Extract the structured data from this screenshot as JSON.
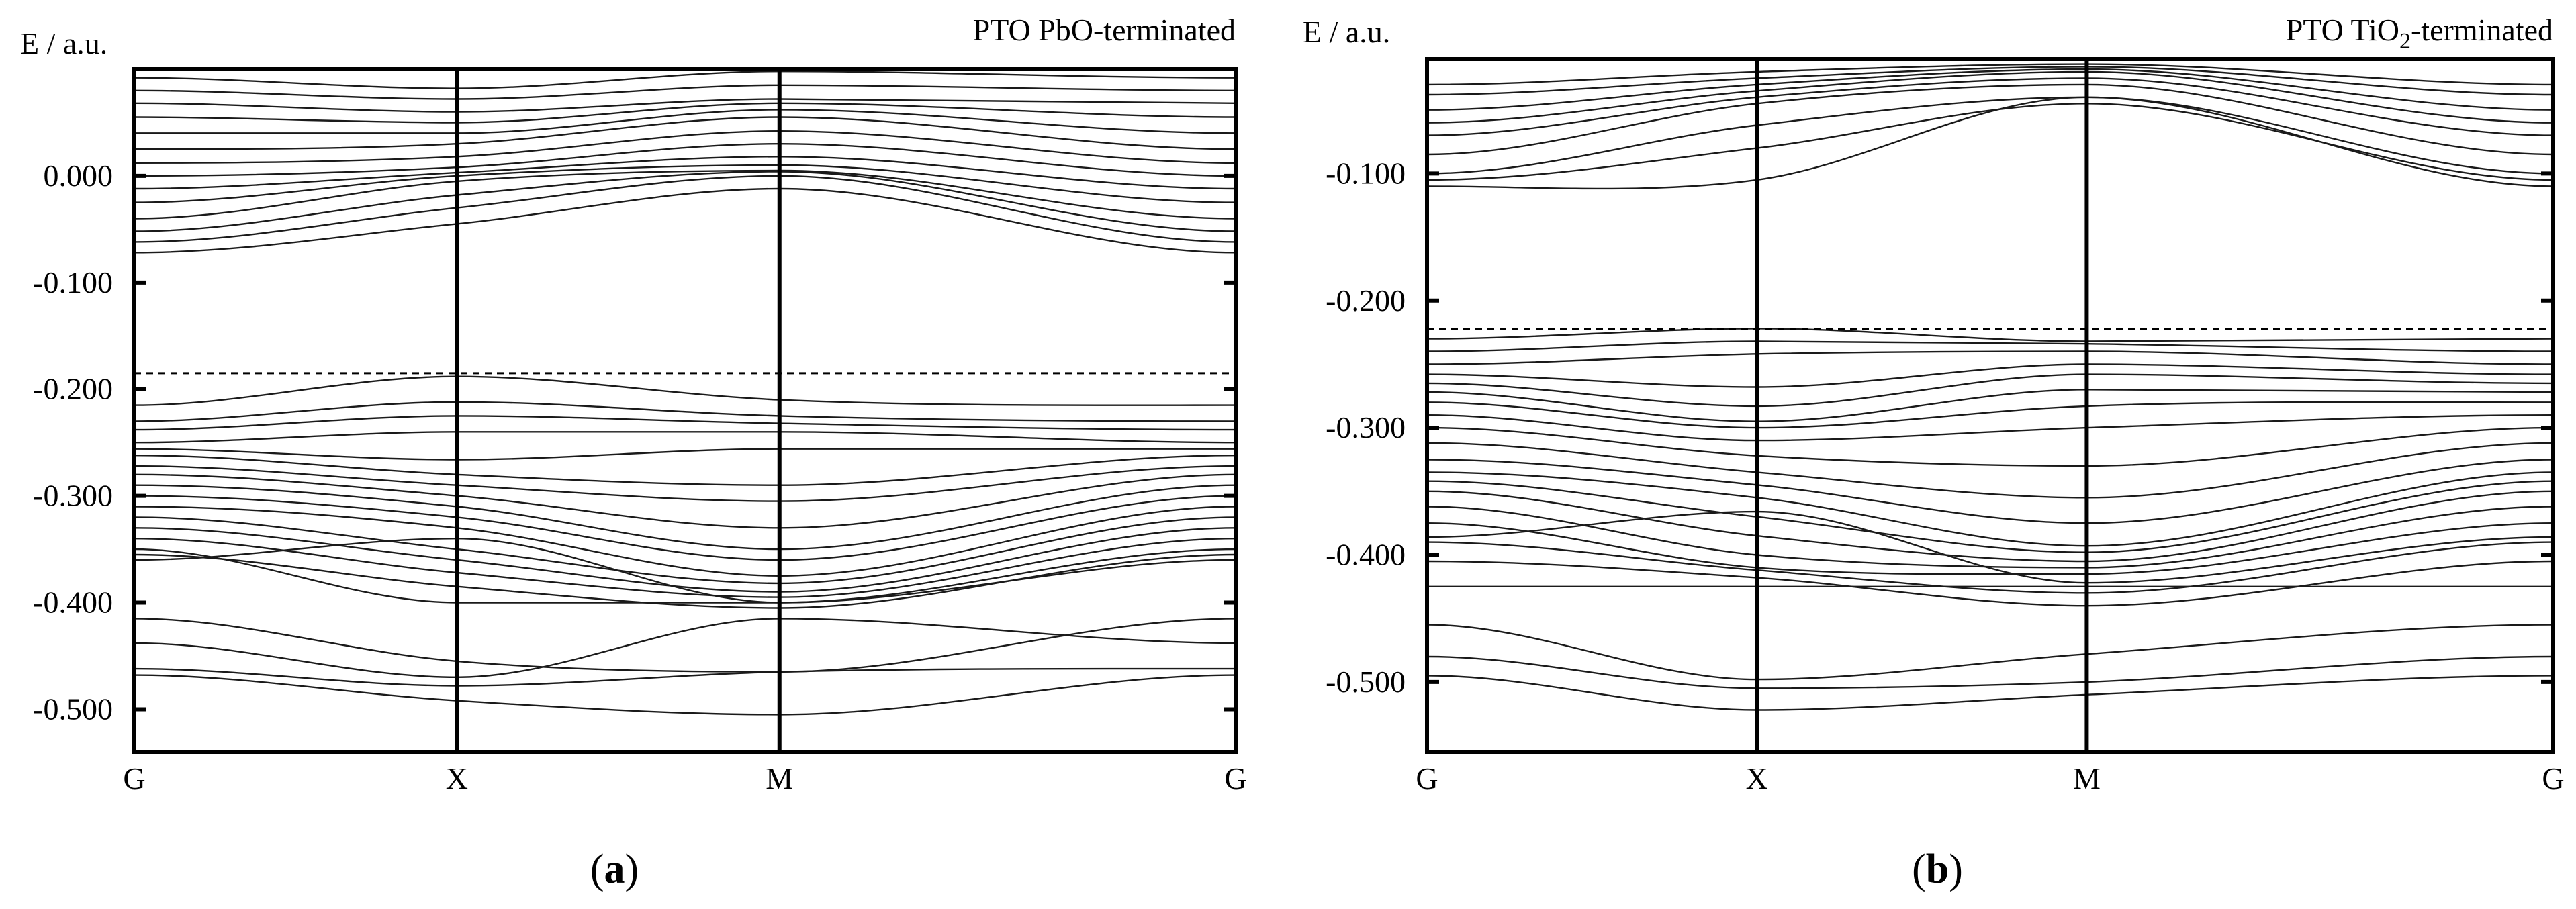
{
  "figure": {
    "caption_a_letter": "a",
    "caption_b_letter": "b",
    "ylabel": "E / a.u."
  },
  "colors": {
    "line": "#1a1a1a",
    "axis": "#000000",
    "background": "#ffffff"
  },
  "chart_data": [
    {
      "type": "line",
      "panel": "a",
      "title": "PTO PbO-terminated",
      "title_parts": [
        "PTO PbO-terminated"
      ],
      "xlabel": "",
      "ylabel": "E / a.u.",
      "x_ticks": [
        "G",
        "X",
        "M",
        "G"
      ],
      "k_positions": [
        0,
        1,
        2,
        3.414
      ],
      "y_ticks": [
        "0.000",
        "-0.100",
        "-0.200",
        "-0.300",
        "-0.400",
        "-0.500"
      ],
      "y_tick_values": [
        0.0,
        -0.1,
        -0.2,
        -0.3,
        -0.4,
        -0.5
      ],
      "ylim": [
        -0.54,
        0.1
      ],
      "fermi_level": -0.185,
      "series": [
        {
          "name": "band 1",
          "values": [
            -0.468,
            -0.492,
            -0.505,
            -0.468
          ]
        },
        {
          "name": "band 2",
          "values": [
            -0.462,
            -0.478,
            -0.465,
            -0.462
          ]
        },
        {
          "name": "band 3",
          "values": [
            -0.438,
            -0.47,
            -0.415,
            -0.438
          ]
        },
        {
          "name": "band 4",
          "values": [
            -0.415,
            -0.455,
            -0.465,
            -0.415
          ]
        },
        {
          "name": "band 5",
          "values": [
            -0.36,
            -0.34,
            -0.4,
            -0.36
          ]
        },
        {
          "name": "band 6",
          "values": [
            -0.355,
            -0.385,
            -0.405,
            -0.355
          ]
        },
        {
          "name": "band 7",
          "values": [
            -0.35,
            -0.4,
            -0.4,
            -0.35
          ]
        },
        {
          "name": "band 8",
          "values": [
            -0.34,
            -0.372,
            -0.395,
            -0.34
          ]
        },
        {
          "name": "band 9",
          "values": [
            -0.33,
            -0.36,
            -0.39,
            -0.33
          ]
        },
        {
          "name": "band 10",
          "values": [
            -0.32,
            -0.35,
            -0.382,
            -0.32
          ]
        },
        {
          "name": "band 11",
          "values": [
            -0.31,
            -0.33,
            -0.375,
            -0.31
          ]
        },
        {
          "name": "band 12",
          "values": [
            -0.3,
            -0.32,
            -0.36,
            -0.3
          ]
        },
        {
          "name": "band 13",
          "values": [
            -0.29,
            -0.31,
            -0.35,
            -0.29
          ]
        },
        {
          "name": "band 14",
          "values": [
            -0.28,
            -0.3,
            -0.33,
            -0.28
          ]
        },
        {
          "name": "band 15",
          "values": [
            -0.272,
            -0.29,
            -0.305,
            -0.272
          ]
        },
        {
          "name": "band 16",
          "values": [
            -0.262,
            -0.28,
            -0.29,
            -0.262
          ]
        },
        {
          "name": "band 17",
          "values": [
            -0.256,
            -0.266,
            -0.256,
            -0.256
          ]
        },
        {
          "name": "band 18",
          "values": [
            -0.25,
            -0.24,
            -0.24,
            -0.25
          ]
        },
        {
          "name": "band 19",
          "values": [
            -0.238,
            -0.225,
            -0.232,
            -0.238
          ]
        },
        {
          "name": "band 20",
          "values": [
            -0.23,
            -0.212,
            -0.225,
            -0.23
          ]
        },
        {
          "name": "band 21",
          "values": [
            -0.215,
            -0.188,
            -0.21,
            -0.215
          ]
        },
        {
          "name": "band 22",
          "values": [
            -0.072,
            -0.045,
            -0.012,
            -0.072
          ]
        },
        {
          "name": "band 23",
          "values": [
            -0.062,
            -0.03,
            0.0,
            -0.062
          ]
        },
        {
          "name": "band 24",
          "values": [
            -0.052,
            -0.018,
            0.004,
            -0.052
          ]
        },
        {
          "name": "band 25",
          "values": [
            -0.04,
            -0.005,
            0.005,
            -0.04
          ]
        },
        {
          "name": "band 26",
          "values": [
            -0.025,
            0.0,
            0.01,
            -0.025
          ]
        },
        {
          "name": "band 27",
          "values": [
            -0.012,
            0.003,
            0.018,
            -0.012
          ]
        },
        {
          "name": "band 28",
          "values": [
            0.0,
            0.008,
            0.03,
            0.0
          ]
        },
        {
          "name": "band 29",
          "values": [
            0.012,
            0.018,
            0.042,
            0.012
          ]
        },
        {
          "name": "band 30",
          "values": [
            0.025,
            0.03,
            0.055,
            0.025
          ]
        },
        {
          "name": "band 31",
          "values": [
            0.04,
            0.04,
            0.062,
            0.04
          ]
        },
        {
          "name": "band 32",
          "values": [
            0.055,
            0.05,
            0.068,
            0.055
          ]
        },
        {
          "name": "band 33",
          "values": [
            0.068,
            0.06,
            0.072,
            0.068
          ]
        },
        {
          "name": "band 34",
          "values": [
            0.08,
            0.072,
            0.085,
            0.08
          ]
        },
        {
          "name": "band 35",
          "values": [
            0.092,
            0.082,
            0.098,
            0.092
          ]
        }
      ]
    },
    {
      "type": "line",
      "panel": "b",
      "title": "PTO TiO2-terminated",
      "title_parts": [
        "PTO TiO",
        "2",
        "-terminated"
      ],
      "xlabel": "",
      "ylabel": "E / a.u.",
      "x_ticks": [
        "G",
        "X",
        "M",
        "G"
      ],
      "k_positions": [
        0,
        1,
        2,
        3.414
      ],
      "y_ticks": [
        "-0.100",
        "-0.200",
        "-0.300",
        "-0.400",
        "-0.500"
      ],
      "y_tick_values": [
        -0.1,
        -0.2,
        -0.3,
        -0.4,
        -0.5
      ],
      "ylim": [
        -0.555,
        -0.01
      ],
      "fermi_level": -0.222,
      "series": [
        {
          "name": "band 1",
          "values": [
            -0.495,
            -0.522,
            -0.51,
            -0.495
          ]
        },
        {
          "name": "band 2",
          "values": [
            -0.48,
            -0.505,
            -0.5,
            -0.48
          ]
        },
        {
          "name": "band 3",
          "values": [
            -0.455,
            -0.498,
            -0.478,
            -0.455
          ]
        },
        {
          "name": "band 4",
          "values": [
            -0.425,
            -0.425,
            -0.425,
            -0.425
          ]
        },
        {
          "name": "band 5",
          "values": [
            -0.405,
            -0.418,
            -0.44,
            -0.405
          ]
        },
        {
          "name": "band 6",
          "values": [
            -0.39,
            -0.412,
            -0.43,
            -0.39
          ]
        },
        {
          "name": "band 7",
          "values": [
            -0.386,
            -0.366,
            -0.422,
            -0.386
          ]
        },
        {
          "name": "band 8",
          "values": [
            -0.375,
            -0.41,
            -0.415,
            -0.375
          ]
        },
        {
          "name": "band 9",
          "values": [
            -0.362,
            -0.4,
            -0.41,
            -0.362
          ]
        },
        {
          "name": "band 10",
          "values": [
            -0.35,
            -0.385,
            -0.405,
            -0.35
          ]
        },
        {
          "name": "band 11",
          "values": [
            -0.342,
            -0.37,
            -0.398,
            -0.342
          ]
        },
        {
          "name": "band 12",
          "values": [
            -0.335,
            -0.355,
            -0.393,
            -0.335
          ]
        },
        {
          "name": "band 13",
          "values": [
            -0.325,
            -0.345,
            -0.375,
            -0.325
          ]
        },
        {
          "name": "band 14",
          "values": [
            -0.312,
            -0.335,
            -0.355,
            -0.312
          ]
        },
        {
          "name": "band 15",
          "values": [
            -0.3,
            -0.322,
            -0.33,
            -0.3
          ]
        },
        {
          "name": "band 16",
          "values": [
            -0.29,
            -0.31,
            -0.3,
            -0.29
          ]
        },
        {
          "name": "band 17",
          "values": [
            -0.28,
            -0.3,
            -0.283,
            -0.28
          ]
        },
        {
          "name": "band 18",
          "values": [
            -0.272,
            -0.295,
            -0.27,
            -0.272
          ]
        },
        {
          "name": "band 19",
          "values": [
            -0.265,
            -0.283,
            -0.258,
            -0.265
          ]
        },
        {
          "name": "band 20",
          "values": [
            -0.258,
            -0.268,
            -0.25,
            -0.258
          ]
        },
        {
          "name": "band 21",
          "values": [
            -0.25,
            -0.242,
            -0.24,
            -0.25
          ]
        },
        {
          "name": "band 22",
          "values": [
            -0.24,
            -0.232,
            -0.234,
            -0.24
          ]
        },
        {
          "name": "band 23",
          "values": [
            -0.23,
            -0.222,
            -0.232,
            -0.23
          ]
        },
        {
          "name": "band 24",
          "values": [
            -0.11,
            -0.105,
            -0.04,
            -0.11
          ]
        },
        {
          "name": "band 25",
          "values": [
            -0.105,
            -0.08,
            -0.045,
            -0.105
          ]
        },
        {
          "name": "band 26",
          "values": [
            -0.1,
            -0.062,
            -0.04,
            -0.1
          ]
        },
        {
          "name": "band 27",
          "values": [
            -0.085,
            -0.045,
            -0.03,
            -0.085
          ]
        },
        {
          "name": "band 28",
          "values": [
            -0.07,
            -0.04,
            -0.025,
            -0.07
          ]
        },
        {
          "name": "band 29",
          "values": [
            -0.06,
            -0.035,
            -0.02,
            -0.06
          ]
        },
        {
          "name": "band 30",
          "values": [
            -0.05,
            -0.03,
            -0.018,
            -0.05
          ]
        },
        {
          "name": "band 31",
          "values": [
            -0.038,
            -0.025,
            -0.016,
            -0.038
          ]
        },
        {
          "name": "band 32",
          "values": [
            -0.03,
            -0.02,
            -0.014,
            -0.03
          ]
        }
      ]
    }
  ]
}
